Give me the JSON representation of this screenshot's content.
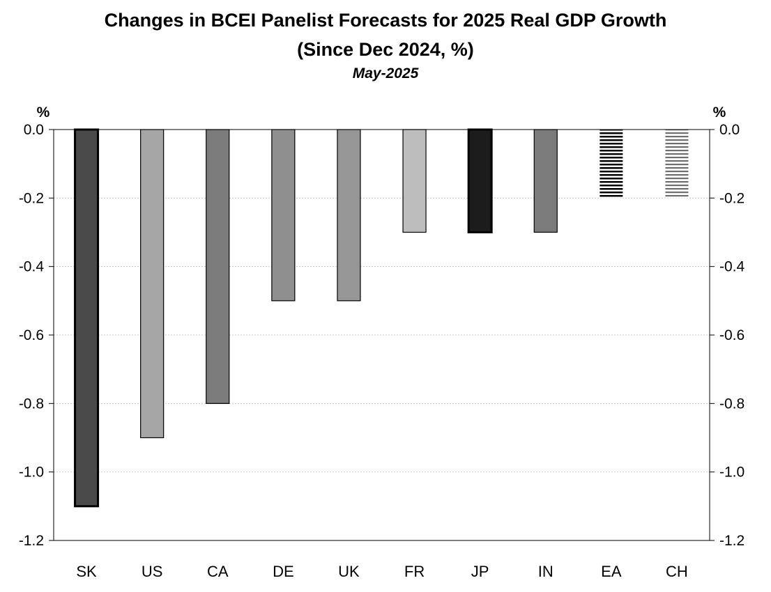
{
  "chart_data": {
    "type": "bar",
    "title": "Changes in BCEI Panelist Forecasts for 2025 Real GDP Growth",
    "title_line2": "(Since Dec 2024, %)",
    "subtitle": "May-2025",
    "ylabel_left": "%",
    "ylabel_right": "%",
    "categories": [
      "SK",
      "US",
      "CA",
      "DE",
      "UK",
      "FR",
      "JP",
      "IN",
      "EA",
      "CH"
    ],
    "values": [
      -1.1,
      -0.9,
      -0.8,
      -0.5,
      -0.5,
      -0.3,
      -0.3,
      -0.3,
      -0.2,
      -0.2
    ],
    "colors": [
      "#4a4a4a",
      "#a6a6a6",
      "#7b7b7b",
      "#8f8f8f",
      "#969696",
      "#bdbdbd",
      "#1c1c1c",
      "#7b7b7b",
      "#000000",
      "#6e6e6e"
    ],
    "fill_styles": [
      "solid",
      "solid",
      "solid",
      "solid",
      "solid",
      "solid",
      "solid",
      "solid",
      "horizontal-stripes",
      "horizontal-stripes"
    ],
    "ylim": [
      -1.2,
      0.0
    ],
    "yticks": [
      "0.0",
      "-0.2",
      "-0.4",
      "-0.6",
      "-0.8",
      "-1.0",
      "-1.2"
    ],
    "ytick_values": [
      0.0,
      -0.2,
      -0.4,
      -0.6,
      -0.8,
      -1.0,
      -1.2
    ],
    "grid": true,
    "legend": "none"
  }
}
